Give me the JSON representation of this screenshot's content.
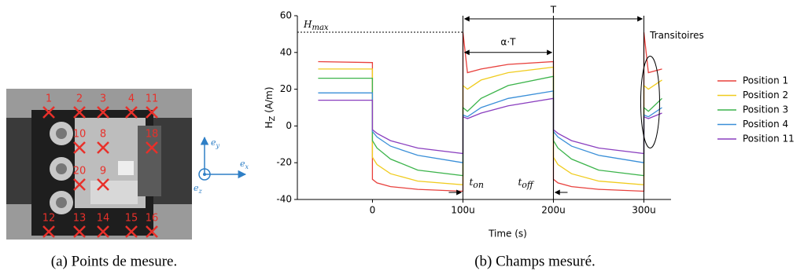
{
  "photo": {
    "points": [
      "1",
      "2",
      "3",
      "4",
      "11",
      "10",
      "8",
      "18",
      "20",
      "9",
      "12",
      "13",
      "14",
      "15",
      "16"
    ],
    "axes": [
      {
        "symbol": "e",
        "sub": "y"
      },
      {
        "symbol": "e",
        "sub": "x"
      },
      {
        "symbol": "e",
        "sub": "z"
      }
    ]
  },
  "captions": [
    "(a) Points de mesure.",
    "(b) Champs mesuré."
  ],
  "chart_data": {
    "type": "line",
    "ylabel": {
      "symbol": "H",
      "sub": "Z",
      "unit": " (A/m)"
    },
    "xlabel": "Time (s)",
    "annotations": {
      "hmax": {
        "symbol": "H",
        "sub": "max"
      },
      "period": "T",
      "duty": "α·T",
      "ton": {
        "symbol": "t",
        "sub": "on"
      },
      "toff": {
        "symbol": "t",
        "sub": "off"
      },
      "transients": "Transitoires"
    },
    "x": [
      -6e-05,
      0,
      0,
      5e-06,
      2e-05,
      5e-05,
      0.0001,
      0.0001,
      0.000105,
      0.00012,
      0.00015,
      0.0002,
      0.0002,
      0.000205,
      0.00022,
      0.00025,
      0.0003,
      0.0003,
      0.000305,
      0.00032
    ],
    "series": [
      {
        "name": "Position 1",
        "color": "#e8403c",
        "values": [
          35,
          34.5,
          -29,
          -31,
          -33,
          -34.5,
          -35.5,
          51,
          29,
          31,
          33.5,
          35,
          -29,
          -31,
          -33,
          -34.5,
          -35.5,
          51,
          29,
          31
        ]
      },
      {
        "name": "Position 2",
        "color": "#f0cc1e",
        "values": [
          31,
          31,
          -17,
          -21,
          -26,
          -30,
          -32,
          22,
          20,
          25,
          29,
          32,
          -17,
          -21,
          -26,
          -30,
          -32,
          22,
          20,
          25
        ]
      },
      {
        "name": "Position 3",
        "color": "#3cb44b",
        "values": [
          26,
          26,
          -8,
          -12,
          -18,
          -24,
          -27,
          10,
          8,
          15,
          22,
          27,
          -8,
          -12,
          -18,
          -24,
          -27,
          10,
          8,
          15
        ]
      },
      {
        "name": "Position 4",
        "color": "#3a8fd8",
        "values": [
          18,
          18,
          -3,
          -6,
          -11,
          -16,
          -20,
          6,
          5,
          10,
          15,
          19,
          -3,
          -6,
          -11,
          -16,
          -20,
          6,
          5,
          10
        ]
      },
      {
        "name": "Position 11",
        "color": "#8a3fbf",
        "values": [
          14,
          14,
          -2,
          -4,
          -8,
          -12,
          -15,
          5,
          4,
          7,
          11,
          15,
          -2,
          -4,
          -8,
          -12,
          -15,
          5,
          4,
          7
        ]
      }
    ],
    "xlim": [
      -8.3e-05,
      0.00033
    ],
    "xticks": [
      0,
      {
        "value": 0.0001,
        "label": "100u"
      },
      {
        "value": 0.0002,
        "label": "200u"
      },
      {
        "value": 0.0003,
        "label": "300u"
      }
    ],
    "ylim": [
      -40,
      60
    ],
    "yticks": [
      -40,
      -20,
      0,
      20,
      40,
      60
    ],
    "grid": false,
    "legend": "right"
  }
}
